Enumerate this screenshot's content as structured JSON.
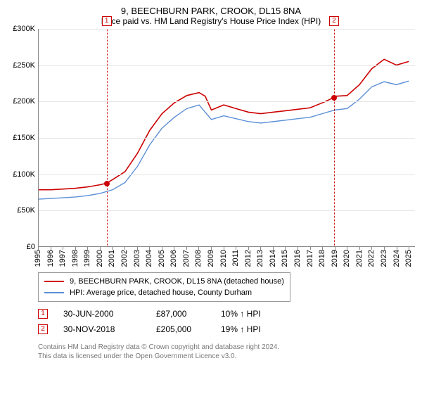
{
  "title": {
    "address": "9, BEECHBURN PARK, CROOK, DL15 8NA",
    "subtitle": "Price paid vs. HM Land Registry's House Price Index (HPI)",
    "title_fontsize": 13,
    "subtitle_fontsize": 12
  },
  "chart": {
    "type": "line",
    "background_color": "#ffffff",
    "grid_color": "#e5e5e5",
    "axis_color": "#888888",
    "tick_fontsize": 11,
    "ylim": [
      0,
      300000
    ],
    "ytick_step": 50000,
    "yticks": [
      "£0",
      "£50K",
      "£100K",
      "£150K",
      "£200K",
      "£250K",
      "£300K"
    ],
    "x_range": [
      1995,
      2025.5
    ],
    "xticks": [
      1995,
      1996,
      1997,
      1998,
      1999,
      2000,
      2001,
      2002,
      2003,
      2004,
      2005,
      2006,
      2007,
      2008,
      2009,
      2010,
      2011,
      2012,
      2013,
      2014,
      2015,
      2016,
      2017,
      2018,
      2019,
      2020,
      2021,
      2022,
      2023,
      2024,
      2025
    ],
    "series": [
      {
        "name": "price_paid",
        "label": "9, BEECHBURN PARK, CROOK, DL15 8NA (detached house)",
        "color": "#cc0000",
        "line_width": 1.6,
        "data": [
          [
            1995,
            78000
          ],
          [
            1996,
            78000
          ],
          [
            1997,
            79000
          ],
          [
            1998,
            80000
          ],
          [
            1999,
            82000
          ],
          [
            2000,
            85000
          ],
          [
            2000.5,
            87000
          ],
          [
            2001,
            92000
          ],
          [
            2002,
            103000
          ],
          [
            2003,
            128000
          ],
          [
            2004,
            160000
          ],
          [
            2005,
            183000
          ],
          [
            2006,
            198000
          ],
          [
            2007,
            208000
          ],
          [
            2008,
            212000
          ],
          [
            2008.5,
            207000
          ],
          [
            2009,
            188000
          ],
          [
            2010,
            195000
          ],
          [
            2011,
            190000
          ],
          [
            2012,
            185000
          ],
          [
            2013,
            183000
          ],
          [
            2014,
            185000
          ],
          [
            2015,
            187000
          ],
          [
            2016,
            189000
          ],
          [
            2017,
            191000
          ],
          [
            2018,
            198000
          ],
          [
            2018.9,
            205000
          ],
          [
            2019,
            207000
          ],
          [
            2020,
            208000
          ],
          [
            2021,
            223000
          ],
          [
            2022,
            245000
          ],
          [
            2023,
            258000
          ],
          [
            2024,
            250000
          ],
          [
            2025,
            255000
          ]
        ]
      },
      {
        "name": "hpi",
        "label": "HPI: Average price, detached house, County Durham",
        "color": "#5b8fd6",
        "line_width": 1.4,
        "data": [
          [
            1995,
            65000
          ],
          [
            1996,
            66000
          ],
          [
            1997,
            67000
          ],
          [
            1998,
            68000
          ],
          [
            1999,
            70000
          ],
          [
            2000,
            73000
          ],
          [
            2001,
            78000
          ],
          [
            2002,
            88000
          ],
          [
            2003,
            110000
          ],
          [
            2004,
            140000
          ],
          [
            2005,
            163000
          ],
          [
            2006,
            178000
          ],
          [
            2007,
            190000
          ],
          [
            2008,
            195000
          ],
          [
            2009,
            175000
          ],
          [
            2010,
            180000
          ],
          [
            2011,
            176000
          ],
          [
            2012,
            172000
          ],
          [
            2013,
            170000
          ],
          [
            2014,
            172000
          ],
          [
            2015,
            174000
          ],
          [
            2016,
            176000
          ],
          [
            2017,
            178000
          ],
          [
            2018,
            183000
          ],
          [
            2019,
            188000
          ],
          [
            2020,
            190000
          ],
          [
            2021,
            203000
          ],
          [
            2022,
            220000
          ],
          [
            2023,
            227000
          ],
          [
            2024,
            223000
          ],
          [
            2025,
            228000
          ]
        ]
      }
    ],
    "markers": [
      {
        "n": "1",
        "x": 2000.5,
        "y": 87000,
        "color": "#cc0000",
        "dot_color": "#cc0000"
      },
      {
        "n": "2",
        "x": 2018.9,
        "y": 205000,
        "color": "#cc0000",
        "dot_color": "#cc0000"
      }
    ]
  },
  "legend": {
    "border_color": "#999999",
    "fontsize": 11,
    "items": [
      {
        "color": "#cc0000",
        "label": "9, BEECHBURN PARK, CROOK, DL15 8NA (detached house)"
      },
      {
        "color": "#5b8fd6",
        "label": "HPI: Average price, detached house, County Durham"
      }
    ]
  },
  "sales": {
    "fontsize": 12,
    "arrow_glyph": "↑",
    "rows": [
      {
        "n": "1",
        "color": "#cc0000",
        "date": "30-JUN-2000",
        "price": "£87,000",
        "pct": "10% ↑ HPI"
      },
      {
        "n": "2",
        "color": "#cc0000",
        "date": "30-NOV-2018",
        "price": "£205,000",
        "pct": "19% ↑ HPI"
      }
    ]
  },
  "footer": {
    "line1": "Contains HM Land Registry data © Crown copyright and database right 2024.",
    "line2": "This data is licensed under the Open Government Licence v3.0.",
    "color": "#777777",
    "fontsize": 10
  }
}
